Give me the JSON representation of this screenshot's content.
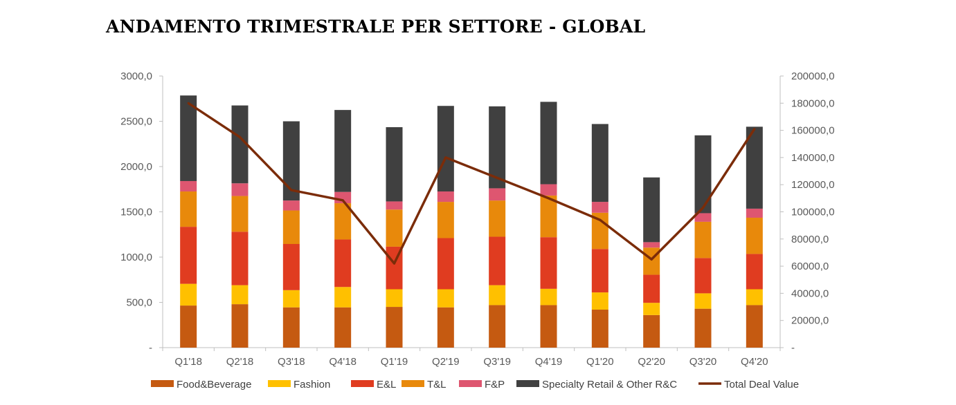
{
  "title": "ANDAMENTO TRIMESTRALE PER SETTORE - GLOBAL",
  "chart_data": {
    "type": "bar",
    "stacked": true,
    "categories": [
      "Q1'18",
      "Q2'18",
      "Q3'18",
      "Q4'18",
      "Q1'19",
      "Q2'19",
      "Q3'19",
      "Q4'19",
      "Q1'20",
      "Q2'20",
      "Q3'20",
      "Q4'20"
    ],
    "series": [
      {
        "name": "Food&Beverage",
        "color": "#C55A11",
        "axis": "left",
        "values": [
          465,
          480,
          445,
          445,
          450,
          445,
          470,
          470,
          420,
          360,
          430,
          470
        ]
      },
      {
        "name": "Fashion",
        "color": "#FFC000",
        "axis": "left",
        "values": [
          240,
          210,
          190,
          225,
          195,
          200,
          220,
          180,
          190,
          135,
          170,
          175
        ]
      },
      {
        "name": "E&L",
        "color": "#E03C20",
        "axis": "left",
        "values": [
          630,
          590,
          510,
          525,
          470,
          565,
          535,
          570,
          480,
          310,
          390,
          390
        ]
      },
      {
        "name": "T&L",
        "color": "#E8890B",
        "axis": "left",
        "values": [
          390,
          395,
          370,
          400,
          410,
          400,
          400,
          460,
          400,
          300,
          400,
          400
        ]
      },
      {
        "name": "F&P",
        "color": "#DE5670",
        "axis": "left",
        "values": [
          115,
          140,
          110,
          125,
          90,
          115,
          135,
          125,
          120,
          60,
          95,
          100
        ]
      },
      {
        "name": "Specialty Retail & Other R&C",
        "color": "#404040",
        "axis": "left",
        "values": [
          945,
          860,
          875,
          905,
          820,
          945,
          905,
          910,
          860,
          715,
          860,
          905
        ]
      },
      {
        "name": "Total Deal Value",
        "type": "line",
        "color": "#7B2C09",
        "axis": "right",
        "values": [
          180000,
          155000,
          116000,
          108500,
          62000,
          140000,
          125000,
          110000,
          94000,
          65000,
          103000,
          161000
        ]
      }
    ],
    "y_left": {
      "min": 0,
      "max": 3000,
      "ticks": [
        "-",
        "500,0",
        "1000,0",
        "1500,0",
        "2000,0",
        "2500,0",
        "3000,0"
      ]
    },
    "y_right": {
      "min": 0,
      "max": 200000,
      "ticks": [
        "-",
        "20000,0",
        "40000,0",
        "60000,0",
        "80000,0",
        "100000,0",
        "120000,0",
        "140000,0",
        "160000,0",
        "180000,0",
        "200000,0"
      ]
    },
    "grid": false,
    "legend_position": "bottom"
  }
}
